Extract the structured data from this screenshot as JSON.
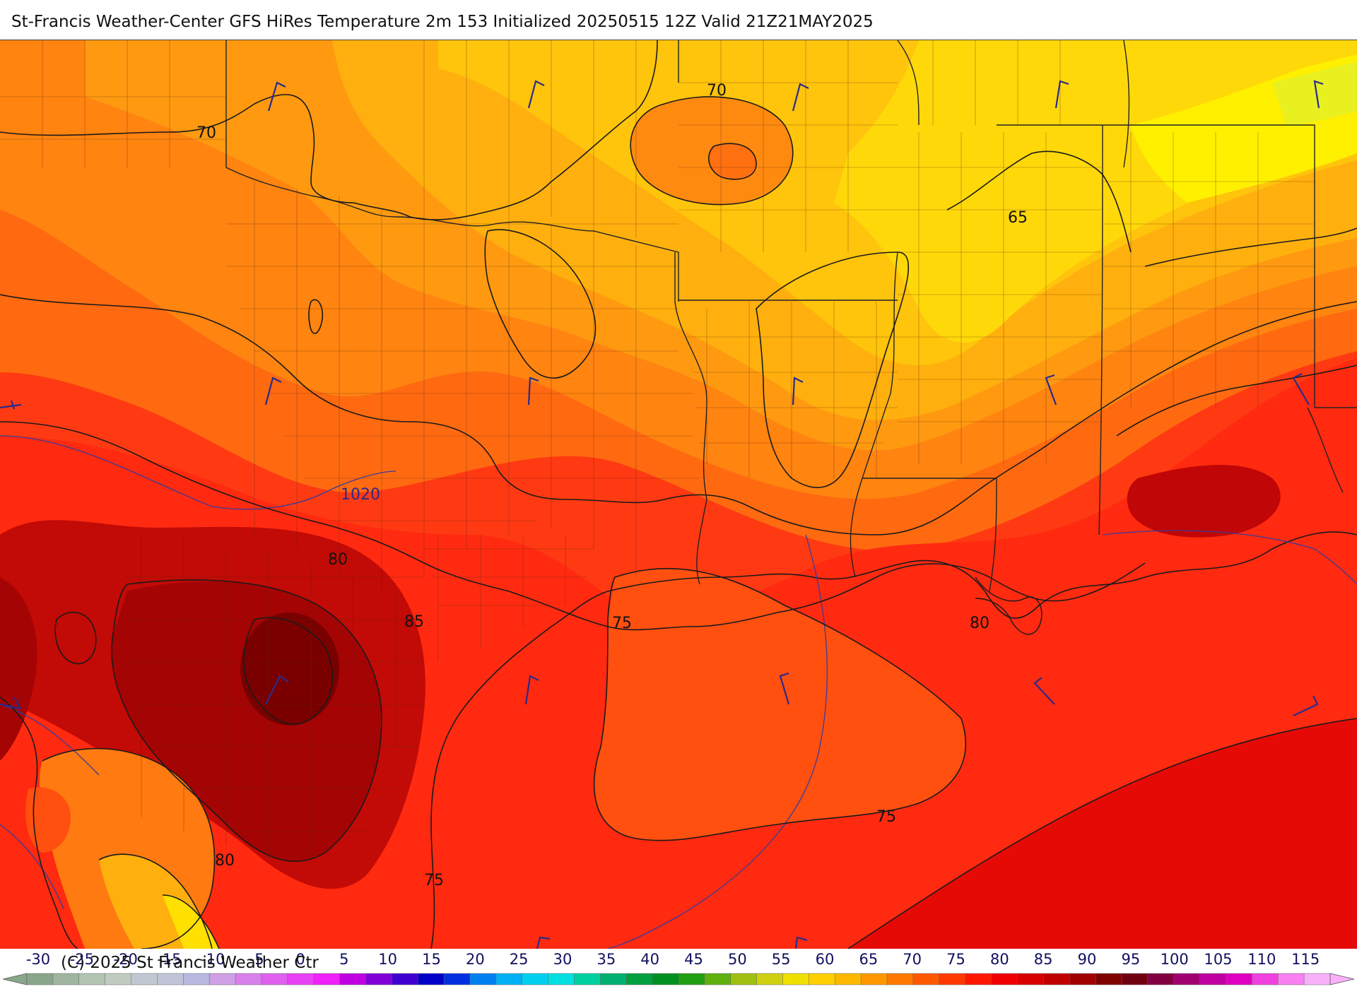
{
  "title": "St-Francis Weather-Center GFS HiRes Temperature 2m  153 Initialized 20250515 12Z Valid 21Z21MAY2025",
  "copyright": "(C) 2025 St Francis Weather Ctr",
  "map": {
    "temperature_contours": [
      {
        "label": "70"
      },
      {
        "label": "70"
      },
      {
        "label": "65"
      },
      {
        "label": "80"
      },
      {
        "label": "85"
      },
      {
        "label": "75"
      },
      {
        "label": "80"
      },
      {
        "label": "80"
      },
      {
        "label": "75"
      },
      {
        "label": "75"
      }
    ],
    "isobar_labels": [
      {
        "label": "1020"
      }
    ],
    "land_color": "#e24a10",
    "gulf_color": "#ff3a12"
  },
  "colorbar": {
    "ticks": [
      "-30",
      "-25",
      "-20",
      "-15",
      "-10",
      "-5",
      "0",
      "5",
      "10",
      "15",
      "20",
      "25",
      "30",
      "35",
      "40",
      "45",
      "50",
      "55",
      "60",
      "65",
      "70",
      "75",
      "80",
      "85",
      "90",
      "95",
      "100",
      "105",
      "110",
      "115"
    ],
    "colors": [
      "#8aa68a",
      "#9fb59f",
      "#b3c4b3",
      "#c0ccc0",
      "#c2c8d2",
      "#c0c4d6",
      "#b8b8e0",
      "#cfa0e6",
      "#d880ec",
      "#e060f0",
      "#e840f4",
      "#f020f8",
      "#c000e0",
      "#8000d8",
      "#4000d0",
      "#0000c8",
      "#0030e0",
      "#0080f0",
      "#00b0f4",
      "#00d0f0",
      "#00e0e0",
      "#00d0a0",
      "#00b070",
      "#00a040",
      "#009020",
      "#20a010",
      "#60b010",
      "#a0c010",
      "#d0d010",
      "#f0e000",
      "#ffd000",
      "#ffb800",
      "#ff9800",
      "#ff7800",
      "#ff5800",
      "#ff3800",
      "#ff1800",
      "#f00000",
      "#d80000",
      "#c00000",
      "#a00000",
      "#800000",
      "#700010",
      "#800040",
      "#a00070",
      "#c000a0",
      "#e000c0",
      "#f040e0",
      "#f880f0",
      "#f8b0f8"
    ]
  }
}
